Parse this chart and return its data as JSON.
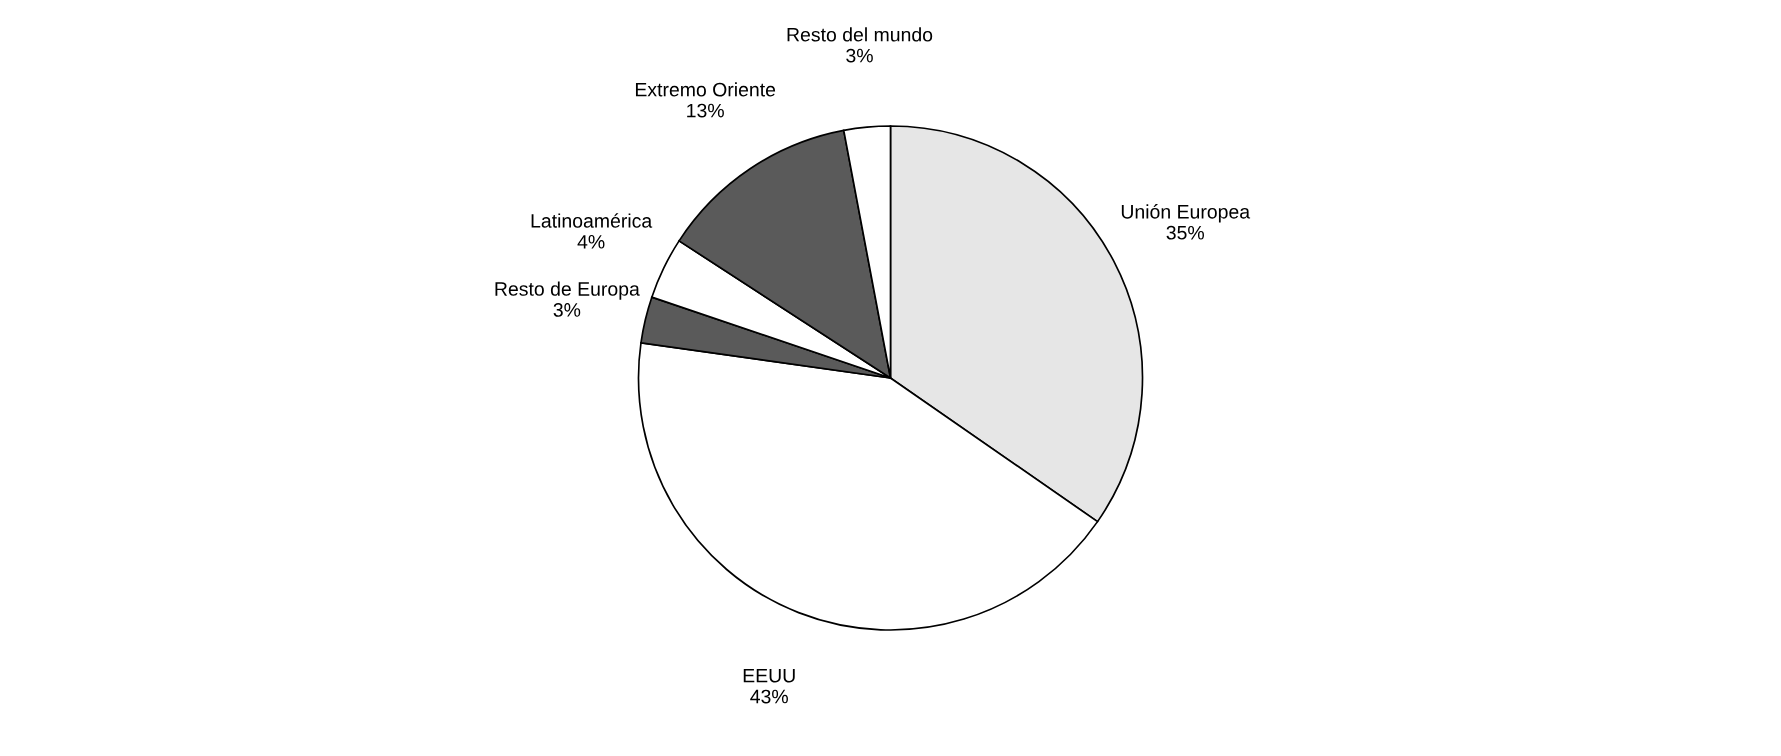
{
  "chart_data": {
    "type": "pie",
    "categories": [
      "Unión Europea",
      "EEUU",
      "Resto de Europa",
      "Latinoamérica",
      "Extremo Oriente",
      "Resto del mundo"
    ],
    "values": [
      35,
      43,
      3,
      4,
      13,
      3
    ],
    "value_labels": [
      "35%",
      "43%",
      "3%",
      "4%",
      "13%",
      "3%"
    ],
    "colors": [
      "#e6e6e6",
      "#ffffff",
      "#5a5a5a",
      "#ffffff",
      "#5a5a5a",
      "#ffffff"
    ],
    "legend": false
  }
}
